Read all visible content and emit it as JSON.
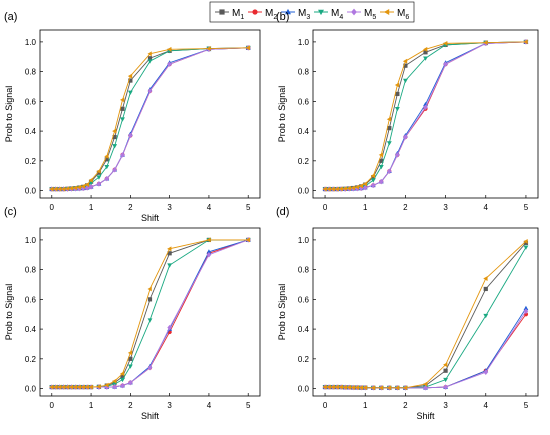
{
  "legend": [
    {
      "label": "M",
      "sub": "1",
      "color": "#595959",
      "marker": "square"
    },
    {
      "label": "M",
      "sub": "2",
      "color": "#e8282f",
      "marker": "circle"
    },
    {
      "label": "M",
      "sub": "3",
      "color": "#1f5fd6",
      "marker": "triangle-up"
    },
    {
      "label": "M",
      "sub": "4",
      "color": "#1aa982",
      "marker": "triangle-down"
    },
    {
      "label": "M",
      "sub": "5",
      "color": "#b078e0",
      "marker": "diamond"
    },
    {
      "label": "M",
      "sub": "6",
      "color": "#e3960e",
      "marker": "triangle-left"
    }
  ],
  "chart_data": [
    {
      "type": "line",
      "panel_label": "(a)",
      "xlabel": "Shift",
      "ylabel": "Prob to Signal",
      "xlim": [
        -0.3,
        5.3
      ],
      "ylim": [
        -0.05,
        1.08
      ],
      "xticks": [
        "0",
        "1",
        "2",
        "3",
        "4",
        "5"
      ],
      "yticks": [
        "0.0",
        "0.2",
        "0.4",
        "0.6",
        "0.8",
        "1.0"
      ],
      "x": [
        0,
        0.1,
        0.2,
        0.3,
        0.4,
        0.5,
        0.6,
        0.7,
        0.8,
        0.9,
        1.0,
        1.2,
        1.4,
        1.6,
        1.8,
        2.0,
        2.5,
        3,
        4,
        5
      ],
      "series": [
        {
          "values": [
            0.01,
            0.01,
            0.01,
            0.01,
            0.012,
            0.014,
            0.016,
            0.02,
            0.025,
            0.035,
            0.06,
            0.12,
            0.21,
            0.36,
            0.55,
            0.74,
            0.89,
            0.94,
            0.955,
            0.96
          ]
        },
        {
          "values": [
            0.01,
            0.01,
            0.01,
            0.01,
            0.01,
            0.011,
            0.012,
            0.013,
            0.015,
            0.018,
            0.025,
            0.045,
            0.08,
            0.14,
            0.24,
            0.37,
            0.67,
            0.85,
            0.95,
            0.96
          ]
        },
        {
          "values": [
            0.01,
            0.01,
            0.01,
            0.01,
            0.01,
            0.011,
            0.012,
            0.013,
            0.015,
            0.018,
            0.025,
            0.045,
            0.08,
            0.14,
            0.24,
            0.38,
            0.68,
            0.86,
            0.95,
            0.96
          ]
        },
        {
          "values": [
            0.01,
            0.01,
            0.01,
            0.01,
            0.012,
            0.013,
            0.015,
            0.018,
            0.022,
            0.03,
            0.05,
            0.09,
            0.16,
            0.3,
            0.48,
            0.66,
            0.87,
            0.94,
            0.955,
            0.96
          ]
        },
        {
          "values": [
            0.01,
            0.01,
            0.01,
            0.01,
            0.01,
            0.011,
            0.012,
            0.013,
            0.015,
            0.018,
            0.025,
            0.045,
            0.08,
            0.14,
            0.24,
            0.37,
            0.67,
            0.85,
            0.95,
            0.96
          ]
        },
        {
          "values": [
            0.01,
            0.01,
            0.01,
            0.01,
            0.013,
            0.015,
            0.018,
            0.022,
            0.028,
            0.04,
            0.07,
            0.13,
            0.23,
            0.4,
            0.61,
            0.77,
            0.92,
            0.95,
            0.955,
            0.96
          ]
        }
      ]
    },
    {
      "type": "line",
      "panel_label": "(b)",
      "xlabel": "",
      "ylabel": "Prob to Signal",
      "xlim": [
        -0.3,
        5.3
      ],
      "ylim": [
        -0.05,
        1.08
      ],
      "xticks": [
        "0",
        "1",
        "2",
        "3",
        "4",
        "5"
      ],
      "yticks": [
        "0.0",
        "0.2",
        "0.4",
        "0.6",
        "0.8",
        "1.0"
      ],
      "x": [
        0,
        0.1,
        0.2,
        0.3,
        0.4,
        0.5,
        0.6,
        0.7,
        0.8,
        0.9,
        1.0,
        1.2,
        1.4,
        1.6,
        1.8,
        2.0,
        2.5,
        3,
        4,
        5
      ],
      "series": [
        {
          "values": [
            0.01,
            0.01,
            0.01,
            0.01,
            0.011,
            0.012,
            0.014,
            0.017,
            0.021,
            0.028,
            0.04,
            0.09,
            0.2,
            0.42,
            0.65,
            0.84,
            0.93,
            0.98,
            0.995,
            1.0
          ]
        },
        {
          "values": [
            0.01,
            0.01,
            0.01,
            0.01,
            0.01,
            0.01,
            0.011,
            0.012,
            0.013,
            0.015,
            0.02,
            0.035,
            0.06,
            0.13,
            0.24,
            0.36,
            0.55,
            0.85,
            0.99,
            1.0
          ]
        },
        {
          "values": [
            0.01,
            0.01,
            0.01,
            0.01,
            0.01,
            0.01,
            0.011,
            0.012,
            0.013,
            0.015,
            0.02,
            0.035,
            0.06,
            0.13,
            0.25,
            0.37,
            0.58,
            0.86,
            0.99,
            1.0
          ]
        },
        {
          "values": [
            0.01,
            0.01,
            0.01,
            0.01,
            0.01,
            0.011,
            0.012,
            0.014,
            0.017,
            0.022,
            0.03,
            0.07,
            0.16,
            0.32,
            0.55,
            0.74,
            0.89,
            0.98,
            0.995,
            1.0
          ]
        },
        {
          "values": [
            0.01,
            0.01,
            0.01,
            0.01,
            0.01,
            0.01,
            0.011,
            0.012,
            0.013,
            0.015,
            0.02,
            0.035,
            0.06,
            0.13,
            0.24,
            0.36,
            0.56,
            0.85,
            0.99,
            1.0
          ]
        },
        {
          "values": [
            0.01,
            0.01,
            0.01,
            0.01,
            0.011,
            0.013,
            0.015,
            0.018,
            0.023,
            0.031,
            0.045,
            0.1,
            0.24,
            0.48,
            0.71,
            0.87,
            0.95,
            0.99,
            0.995,
            1.0
          ]
        }
      ]
    },
    {
      "type": "line",
      "panel_label": "(c)",
      "xlabel": "Shift",
      "ylabel": "Prob to Signal",
      "xlim": [
        -0.3,
        5.3
      ],
      "ylim": [
        -0.05,
        1.08
      ],
      "xticks": [
        "0",
        "1",
        "2",
        "3",
        "4",
        "5"
      ],
      "yticks": [
        "0.0",
        "0.2",
        "0.4",
        "0.6",
        "0.8",
        "1.0"
      ],
      "x": [
        0,
        0.1,
        0.2,
        0.3,
        0.4,
        0.5,
        0.6,
        0.7,
        0.8,
        0.9,
        1.0,
        1.2,
        1.4,
        1.6,
        1.8,
        2.0,
        2.5,
        3,
        4,
        5
      ],
      "series": [
        {
          "values": [
            0.01,
            0.01,
            0.01,
            0.01,
            0.01,
            0.01,
            0.01,
            0.01,
            0.01,
            0.01,
            0.01,
            0.012,
            0.02,
            0.04,
            0.08,
            0.2,
            0.6,
            0.91,
            1.0,
            1.0
          ]
        },
        {
          "values": [
            0.01,
            0.01,
            0.01,
            0.01,
            0.01,
            0.01,
            0.01,
            0.01,
            0.01,
            0.01,
            0.01,
            0.01,
            0.01,
            0.012,
            0.02,
            0.04,
            0.14,
            0.38,
            0.91,
            1.0
          ]
        },
        {
          "values": [
            0.01,
            0.01,
            0.01,
            0.01,
            0.01,
            0.01,
            0.01,
            0.01,
            0.01,
            0.01,
            0.01,
            0.01,
            0.01,
            0.012,
            0.02,
            0.04,
            0.15,
            0.4,
            0.92,
            1.0
          ]
        },
        {
          "values": [
            0.01,
            0.01,
            0.01,
            0.01,
            0.01,
            0.01,
            0.01,
            0.01,
            0.01,
            0.01,
            0.01,
            0.011,
            0.015,
            0.03,
            0.06,
            0.15,
            0.46,
            0.83,
            1.0,
            1.0
          ]
        },
        {
          "values": [
            0.01,
            0.01,
            0.01,
            0.01,
            0.01,
            0.01,
            0.01,
            0.01,
            0.01,
            0.01,
            0.01,
            0.01,
            0.01,
            0.012,
            0.02,
            0.04,
            0.14,
            0.41,
            0.9,
            1.0
          ]
        },
        {
          "values": [
            0.01,
            0.01,
            0.01,
            0.01,
            0.01,
            0.01,
            0.01,
            0.01,
            0.01,
            0.01,
            0.01,
            0.013,
            0.023,
            0.05,
            0.1,
            0.24,
            0.67,
            0.94,
            1.0,
            1.0
          ]
        }
      ]
    },
    {
      "type": "line",
      "panel_label": "(d)",
      "xlabel": "Shift",
      "ylabel": "Prob to Signal",
      "xlim": [
        -0.3,
        5.3
      ],
      "ylim": [
        -0.05,
        1.08
      ],
      "xticks": [
        "0",
        "1",
        "2",
        "3",
        "4",
        "5"
      ],
      "yticks": [
        "0.0",
        "0.2",
        "0.4",
        "0.6",
        "0.8",
        "1.0"
      ],
      "x": [
        0,
        0.1,
        0.2,
        0.3,
        0.4,
        0.5,
        0.6,
        0.7,
        0.8,
        0.9,
        1.0,
        1.2,
        1.4,
        1.6,
        1.8,
        2.0,
        2.5,
        3,
        4,
        5
      ],
      "series": [
        {
          "values": [
            0.01,
            0.01,
            0.01,
            0.01,
            0.01,
            0.008,
            0.008,
            0.007,
            0.007,
            0.006,
            0.006,
            0.005,
            0.005,
            0.005,
            0.005,
            0.005,
            0.02,
            0.12,
            0.67,
            0.98
          ]
        },
        {
          "values": [
            0.01,
            0.01,
            0.01,
            0.01,
            0.01,
            0.008,
            0.008,
            0.007,
            0.007,
            0.006,
            0.006,
            0.005,
            0.005,
            0.005,
            0.005,
            0.005,
            0.005,
            0.01,
            0.12,
            0.5
          ]
        },
        {
          "values": [
            0.01,
            0.01,
            0.01,
            0.01,
            0.01,
            0.008,
            0.008,
            0.007,
            0.007,
            0.006,
            0.006,
            0.005,
            0.005,
            0.005,
            0.005,
            0.005,
            0.005,
            0.01,
            0.12,
            0.54
          ]
        },
        {
          "values": [
            0.01,
            0.01,
            0.01,
            0.01,
            0.01,
            0.008,
            0.008,
            0.007,
            0.007,
            0.006,
            0.006,
            0.005,
            0.005,
            0.005,
            0.005,
            0.005,
            0.01,
            0.06,
            0.49,
            0.95
          ]
        },
        {
          "values": [
            0.01,
            0.01,
            0.01,
            0.01,
            0.01,
            0.008,
            0.008,
            0.007,
            0.007,
            0.006,
            0.006,
            0.005,
            0.005,
            0.005,
            0.005,
            0.005,
            0.005,
            0.01,
            0.11,
            0.52
          ]
        },
        {
          "values": [
            0.01,
            0.01,
            0.01,
            0.01,
            0.01,
            0.008,
            0.008,
            0.007,
            0.007,
            0.006,
            0.006,
            0.005,
            0.005,
            0.005,
            0.005,
            0.005,
            0.03,
            0.16,
            0.74,
            0.99
          ]
        }
      ]
    }
  ]
}
